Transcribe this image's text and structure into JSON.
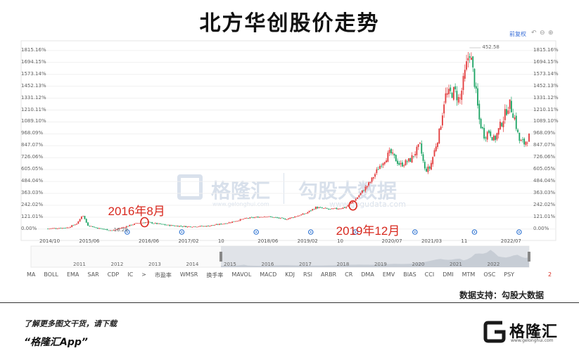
{
  "title": "北方华创股价走势",
  "toolbar": {
    "adjust_label": "前复权",
    "icons": [
      "undo-icon",
      "reset-icon",
      "add-icon"
    ]
  },
  "watermark": {
    "brand": "格隆汇",
    "brand_url": "www.gelonghui.com",
    "data_brand": "勾股大数据",
    "data_url": "www.gogudata.com"
  },
  "chart_data": {
    "type": "candlestick",
    "title": "北方华创股价走势",
    "y_ticks_pct": [
      0,
      121.01,
      242.02,
      363.03,
      484.04,
      605.05,
      726.06,
      847.07,
      968.09,
      1089.1,
      1210.11,
      1331.12,
      1452.13,
      1573.14,
      1694.15,
      1815.16
    ],
    "y_tick_labels": [
      "0.00%",
      "121.01%",
      "242.02%",
      "363.03%",
      "484.04%",
      "605.05%",
      "726.06%",
      "847.07%",
      "968.09%",
      "1089.10%",
      "1210.11%",
      "1331.12%",
      "1452.13%",
      "1573.14%",
      "1694.15%",
      "1815.16%"
    ],
    "ylim": [
      -30,
      1900
    ],
    "x_labels": [
      "2014/10",
      "2015/06",
      "2016/06",
      "2017/02",
      "10",
      "2018/06",
      "2019/02",
      "10",
      "2020/07",
      "2021/03",
      "11",
      "2022/07"
    ],
    "x_label_months": [
      0,
      8,
      20,
      28,
      36,
      44,
      52,
      60,
      69,
      77,
      85,
      93
    ],
    "x_range_months": [
      0,
      97
    ],
    "max_label": "452.58",
    "min_label": "16.29",
    "trend": [
      {
        "m": 0,
        "v": 5
      },
      {
        "m": 4,
        "v": 15
      },
      {
        "m": 6,
        "v": 60
      },
      {
        "m": 7,
        "v": 150
      },
      {
        "m": 8,
        "v": 40
      },
      {
        "m": 10,
        "v": 10
      },
      {
        "m": 13,
        "v": -15
      },
      {
        "m": 16,
        "v": 30
      },
      {
        "m": 18,
        "v": 60
      },
      {
        "m": 20,
        "v": 70
      },
      {
        "m": 24,
        "v": 40
      },
      {
        "m": 28,
        "v": 25
      },
      {
        "m": 32,
        "v": 30
      },
      {
        "m": 36,
        "v": 60
      },
      {
        "m": 40,
        "v": 110
      },
      {
        "m": 44,
        "v": 130
      },
      {
        "m": 48,
        "v": 100
      },
      {
        "m": 52,
        "v": 160
      },
      {
        "m": 54,
        "v": 220
      },
      {
        "m": 57,
        "v": 200
      },
      {
        "m": 60,
        "v": 220
      },
      {
        "m": 62,
        "v": 300
      },
      {
        "m": 65,
        "v": 480
      },
      {
        "m": 67,
        "v": 650
      },
      {
        "m": 69,
        "v": 780
      },
      {
        "m": 71,
        "v": 650
      },
      {
        "m": 73,
        "v": 700
      },
      {
        "m": 75,
        "v": 850
      },
      {
        "m": 76,
        "v": 600
      },
      {
        "m": 77,
        "v": 620
      },
      {
        "m": 79,
        "v": 1000
      },
      {
        "m": 80,
        "v": 1350
      },
      {
        "m": 82,
        "v": 1400
      },
      {
        "m": 83,
        "v": 1300
      },
      {
        "m": 85,
        "v": 1820
      },
      {
        "m": 86,
        "v": 1500
      },
      {
        "m": 87,
        "v": 1100
      },
      {
        "m": 88,
        "v": 950
      },
      {
        "m": 89,
        "v": 1000
      },
      {
        "m": 90,
        "v": 900
      },
      {
        "m": 92,
        "v": 1150
      },
      {
        "m": 93,
        "v": 1280
      },
      {
        "m": 94,
        "v": 1150
      },
      {
        "m": 95,
        "v": 900
      },
      {
        "m": 96,
        "v": 870
      },
      {
        "m": 97,
        "v": 940
      }
    ],
    "event_markers_months": [
      16,
      27,
      42,
      53,
      62,
      74,
      86,
      95
    ],
    "annotations": [
      {
        "text": "2016年8月",
        "m": 19.5,
        "v": 70
      },
      {
        "text": "2019年12月",
        "m": 61.5,
        "v": 240
      }
    ],
    "grid": true
  },
  "navigator": {
    "years": [
      "2011",
      "2012",
      "2013",
      "2014",
      "2015",
      "2016",
      "2017",
      "2018",
      "2019",
      "2020",
      "2021",
      "2022"
    ]
  },
  "indicators": [
    "MA",
    "BOLL",
    "EMA",
    "SAR",
    "CDP",
    "IC",
    ">",
    "市盈率",
    "WMSR",
    "换手率",
    "MAVOL",
    "MACD",
    "KDJ",
    "RSI",
    "ARBR",
    "CR",
    "DMA",
    "EMV",
    "BIAS",
    "CCI",
    "DMI",
    "MTM",
    "OSC",
    "PSY"
  ],
  "indicator_page": "2",
  "source": "数据支持：勾股大数据",
  "footer": {
    "line1": "了解更多图文干货，请下载",
    "line2": "“格隆汇App”",
    "logo_text": "格隆汇",
    "logo_sub": "www.gelonghui.com"
  },
  "colors": {
    "up": "#e2393a",
    "down": "#1aa363",
    "annotation": "#d8281e"
  }
}
